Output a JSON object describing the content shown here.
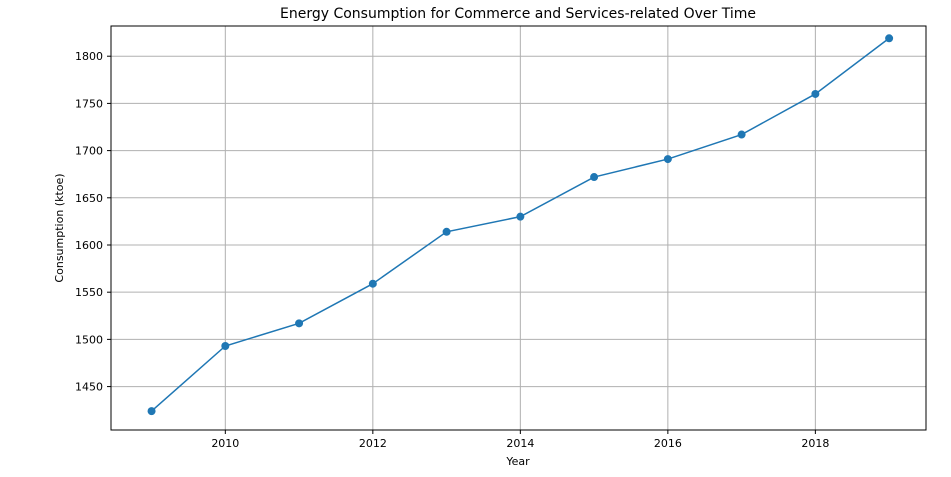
{
  "chart_data": {
    "type": "line",
    "title": "Energy Consumption for Commerce and Services-related Over Time",
    "xlabel": "Year",
    "ylabel": "Consumption (ktoe)",
    "xlim": [
      2008.45,
      2019.5
    ],
    "ylim": [
      1404,
      1832
    ],
    "x_ticks": [
      2010,
      2012,
      2014,
      2016,
      2018
    ],
    "y_ticks": [
      1450,
      1500,
      1550,
      1600,
      1650,
      1700,
      1750,
      1800
    ],
    "grid": true,
    "legend": "none",
    "series": [
      {
        "x": [
          2009,
          2010,
          2011,
          2012,
          2013,
          2014,
          2015,
          2016,
          2017,
          2018,
          2019
        ],
        "values": [
          1424,
          1493,
          1517,
          1559,
          1614,
          1630,
          1672,
          1691,
          1717,
          1760,
          1819
        ],
        "color": "#1f77b4",
        "marker": "circle"
      }
    ]
  }
}
